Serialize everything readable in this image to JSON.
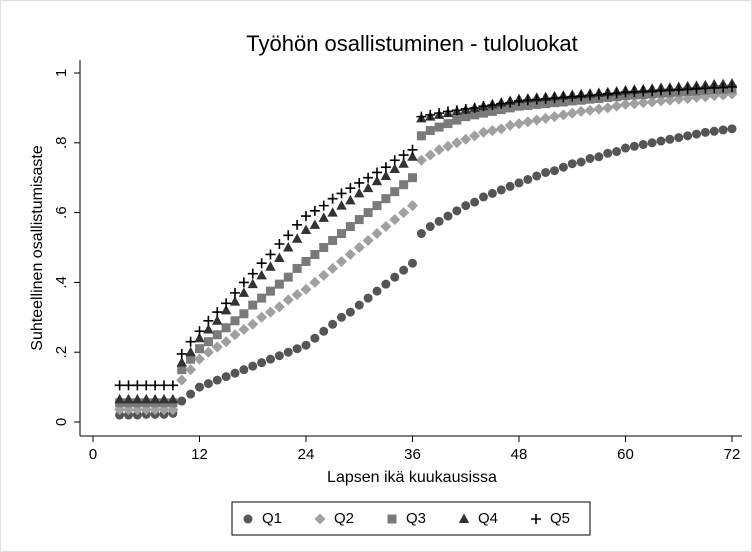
{
  "chart_data": {
    "type": "scatter",
    "title": "Työhön osallistuminen - tuloluokat",
    "xlabel": "Lapsen ikä kuukausissa",
    "ylabel": "Suhteellinen osallistumisaste",
    "xlim": [
      0,
      72
    ],
    "ylim": [
      0,
      1
    ],
    "xticks": [
      0,
      12,
      24,
      36,
      48,
      60,
      72
    ],
    "yticks": [
      0,
      {
        "value": 0.2,
        "label": ".2"
      },
      {
        "value": 0.4,
        "label": ".4"
      },
      {
        "value": 0.6,
        "label": ".6"
      },
      {
        "value": 0.8,
        "label": ".8"
      },
      1
    ],
    "legend": "bottom",
    "x": [
      3,
      4,
      5,
      6,
      7,
      8,
      9,
      10,
      11,
      12,
      13,
      14,
      15,
      16,
      17,
      18,
      19,
      20,
      21,
      22,
      23,
      24,
      25,
      26,
      27,
      28,
      29,
      30,
      31,
      32,
      33,
      34,
      35,
      36,
      37,
      38,
      39,
      40,
      41,
      42,
      43,
      44,
      45,
      46,
      47,
      48,
      49,
      50,
      51,
      52,
      53,
      54,
      55,
      56,
      57,
      58,
      59,
      60,
      61,
      62,
      63,
      64,
      65,
      66,
      67,
      68,
      69,
      70,
      71,
      72
    ],
    "series": [
      {
        "name": "Q1",
        "color": "#555555",
        "marker": "circle",
        "values": [
          0.02,
          0.02,
          0.02,
          0.022,
          0.022,
          0.022,
          0.025,
          0.06,
          0.08,
          0.1,
          0.11,
          0.12,
          0.13,
          0.14,
          0.15,
          0.16,
          0.17,
          0.18,
          0.19,
          0.2,
          0.21,
          0.22,
          0.24,
          0.26,
          0.28,
          0.3,
          0.315,
          0.335,
          0.355,
          0.375,
          0.395,
          0.415,
          0.435,
          0.455,
          0.54,
          0.56,
          0.575,
          0.59,
          0.605,
          0.62,
          0.63,
          0.645,
          0.655,
          0.665,
          0.675,
          0.685,
          0.695,
          0.705,
          0.715,
          0.72,
          0.73,
          0.74,
          0.745,
          0.755,
          0.76,
          0.77,
          0.775,
          0.785,
          0.79,
          0.795,
          0.8,
          0.805,
          0.81,
          0.815,
          0.82,
          0.825,
          0.83,
          0.833,
          0.837,
          0.84
        ]
      },
      {
        "name": "Q2",
        "color": "#a0a0a0",
        "marker": "diamond",
        "values": [
          0.035,
          0.035,
          0.035,
          0.035,
          0.035,
          0.035,
          0.035,
          0.12,
          0.15,
          0.18,
          0.2,
          0.215,
          0.23,
          0.25,
          0.265,
          0.28,
          0.3,
          0.315,
          0.33,
          0.35,
          0.365,
          0.38,
          0.4,
          0.42,
          0.44,
          0.46,
          0.48,
          0.5,
          0.52,
          0.54,
          0.56,
          0.58,
          0.6,
          0.62,
          0.75,
          0.765,
          0.78,
          0.79,
          0.8,
          0.81,
          0.82,
          0.83,
          0.835,
          0.84,
          0.85,
          0.855,
          0.86,
          0.865,
          0.87,
          0.875,
          0.88,
          0.885,
          0.89,
          0.893,
          0.897,
          0.9,
          0.905,
          0.91,
          0.912,
          0.915,
          0.917,
          0.92,
          0.922,
          0.925,
          0.927,
          0.93,
          0.932,
          0.935,
          0.937,
          0.94
        ]
      },
      {
        "name": "Q3",
        "color": "#7a7a7a",
        "marker": "square",
        "values": [
          0.055,
          0.055,
          0.055,
          0.055,
          0.055,
          0.055,
          0.055,
          0.15,
          0.18,
          0.21,
          0.23,
          0.25,
          0.27,
          0.29,
          0.31,
          0.335,
          0.355,
          0.375,
          0.395,
          0.415,
          0.44,
          0.46,
          0.48,
          0.5,
          0.52,
          0.54,
          0.56,
          0.58,
          0.6,
          0.62,
          0.64,
          0.66,
          0.68,
          0.7,
          0.82,
          0.835,
          0.845,
          0.855,
          0.865,
          0.875,
          0.88,
          0.885,
          0.89,
          0.895,
          0.9,
          0.905,
          0.907,
          0.91,
          0.912,
          0.915,
          0.917,
          0.92,
          0.922,
          0.925,
          0.927,
          0.93,
          0.932,
          0.935,
          0.937,
          0.938,
          0.94,
          0.942,
          0.943,
          0.945,
          0.947,
          0.948,
          0.95,
          0.952,
          0.953,
          0.955
        ]
      },
      {
        "name": "Q4",
        "color": "#333333",
        "marker": "triangle",
        "values": [
          0.065,
          0.065,
          0.065,
          0.065,
          0.065,
          0.065,
          0.065,
          0.17,
          0.2,
          0.24,
          0.265,
          0.29,
          0.32,
          0.345,
          0.37,
          0.395,
          0.42,
          0.445,
          0.47,
          0.5,
          0.525,
          0.55,
          0.565,
          0.585,
          0.6,
          0.62,
          0.635,
          0.655,
          0.67,
          0.69,
          0.705,
          0.725,
          0.74,
          0.76,
          0.87,
          0.875,
          0.88,
          0.885,
          0.89,
          0.895,
          0.9,
          0.905,
          0.91,
          0.915,
          0.92,
          0.925,
          0.927,
          0.929,
          0.931,
          0.933,
          0.935,
          0.937,
          0.939,
          0.941,
          0.943,
          0.945,
          0.947,
          0.95,
          0.952,
          0.953,
          0.955,
          0.957,
          0.958,
          0.96,
          0.962,
          0.963,
          0.965,
          0.967,
          0.968,
          0.97
        ]
      },
      {
        "name": "Q5",
        "color": "#000000",
        "marker": "plus",
        "values": [
          0.105,
          0.105,
          0.105,
          0.105,
          0.105,
          0.105,
          0.105,
          0.195,
          0.23,
          0.26,
          0.29,
          0.315,
          0.34,
          0.37,
          0.4,
          0.425,
          0.455,
          0.48,
          0.51,
          0.535,
          0.565,
          0.59,
          0.605,
          0.62,
          0.64,
          0.655,
          0.67,
          0.685,
          0.7,
          0.715,
          0.73,
          0.75,
          0.765,
          0.78,
          0.875,
          0.88,
          0.885,
          0.89,
          0.893,
          0.897,
          0.9,
          0.905,
          0.908,
          0.912,
          0.915,
          0.92,
          0.922,
          0.924,
          0.926,
          0.928,
          0.93,
          0.932,
          0.934,
          0.936,
          0.938,
          0.94,
          0.942,
          0.945,
          0.946,
          0.947,
          0.948,
          0.95,
          0.951,
          0.952,
          0.953,
          0.955,
          0.956,
          0.957,
          0.958,
          0.96
        ]
      }
    ]
  }
}
